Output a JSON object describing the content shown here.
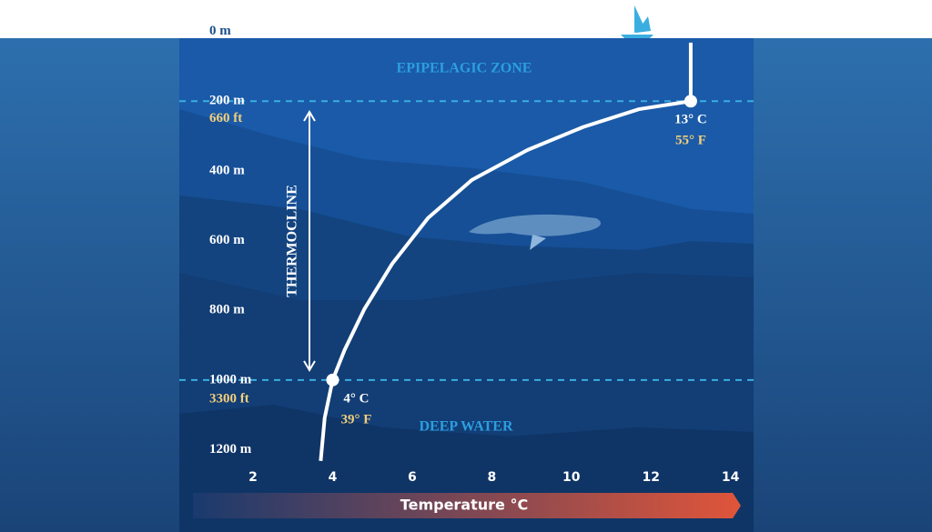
{
  "chart_data": {
    "type": "line",
    "x": [
      13,
      13,
      11.7,
      10.3,
      8.9,
      7.5,
      6.4,
      5.5,
      4.8,
      4.3,
      4,
      3.8,
      3.7
    ],
    "values": [
      32,
      200,
      223,
      274,
      340,
      426,
      535,
      666,
      796,
      914,
      1000,
      1109,
      1232
    ],
    "color": "#ffffff",
    "xlim": [
      0,
      14.5
    ],
    "xticks": [
      2,
      4,
      6,
      8,
      10,
      12,
      14
    ],
    "xlabel": "Temperature °C",
    "ylim": [
      0,
      1350
    ],
    "y_inverted": true,
    "yticks": [
      {
        "value": 0,
        "label": "0 m"
      },
      {
        "value": 200,
        "label": "200 m"
      },
      {
        "value": 400,
        "label": "400 m"
      },
      {
        "value": 600,
        "label": "600 m"
      },
      {
        "value": 800,
        "label": "800 m"
      },
      {
        "value": 1000,
        "label": "1000 m"
      },
      {
        "value": 1200,
        "label": "1200 m"
      }
    ],
    "y2lim": [
      0,
      4430
    ],
    "y2ticks": [
      {
        "value": 660,
        "label": "660 ft"
      },
      {
        "value": 3300,
        "label": "3300 ft"
      }
    ],
    "hlines": [
      200,
      1000
    ],
    "annotations": [
      {
        "x": 13,
        "y": 200,
        "texts": [
          "13° C",
          "55° F"
        ]
      },
      {
        "x": 4,
        "y": 1000,
        "texts": [
          "4° C",
          "39° F"
        ]
      }
    ],
    "zones": [
      "EPIPELAGIC ZONE",
      "DEEP WATER"
    ],
    "range_label": "THERMOCLINE"
  }
}
